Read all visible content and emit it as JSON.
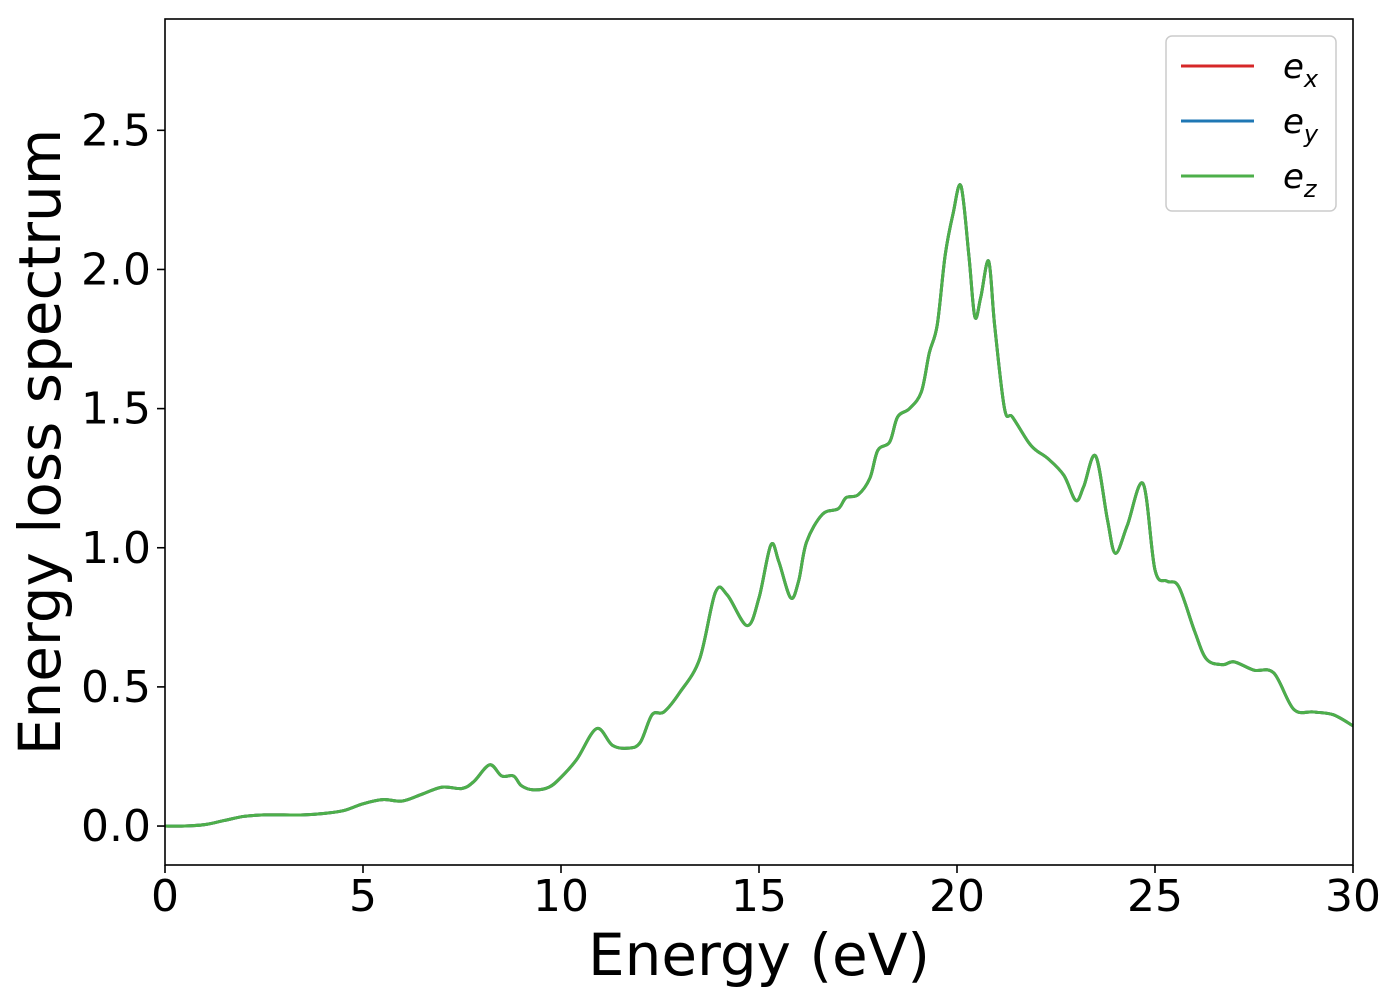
{
  "chart_data": {
    "type": "line",
    "title": "",
    "xlabel": "Energy (eV)",
    "ylabel": "Energy loss spectrum",
    "xlim": [
      0,
      30
    ],
    "ylim": [
      -0.14,
      2.9
    ],
    "xticks": [
      0,
      5,
      10,
      15,
      20,
      25,
      30
    ],
    "xtick_labels": [
      "0",
      "5",
      "10",
      "15",
      "20",
      "25",
      "30"
    ],
    "yticks": [
      0.0,
      0.5,
      1.0,
      1.5,
      2.0,
      2.5
    ],
    "ytick_labels": [
      "0.0",
      "0.5",
      "1.0",
      "1.5",
      "2.0",
      "2.5"
    ],
    "grid": false,
    "legend_position": "top-right",
    "colors": {
      "ex": "#d62728",
      "ey": "#1f77b4",
      "ez": "#4daf4a"
    },
    "series": [
      {
        "name": "e_x",
        "label_base": "e",
        "label_sub": "x",
        "color": "#d62728",
        "x": [
          0,
          0.5,
          1.0,
          1.5,
          2.0,
          2.5,
          3.0,
          3.5,
          4.0,
          4.5,
          5.0,
          5.5,
          6.0,
          6.5,
          7.0,
          7.5,
          7.8,
          8.2,
          8.5,
          8.8,
          9.0,
          9.3,
          9.7,
          10.0,
          10.4,
          10.9,
          11.3,
          11.7,
          12.0,
          12.3,
          12.6,
          13.0,
          13.5,
          13.9,
          14.2,
          14.7,
          15.0,
          15.3,
          15.5,
          15.8,
          16.0,
          16.2,
          16.6,
          17.0,
          17.2,
          17.5,
          17.8,
          18.0,
          18.3,
          18.5,
          18.8,
          19.1,
          19.3,
          19.5,
          19.7,
          19.9,
          20.1,
          20.3,
          20.45,
          20.6,
          20.8,
          20.95,
          21.2,
          21.4,
          21.8,
          22.0,
          22.3,
          22.7,
          23.0,
          23.2,
          23.5,
          23.8,
          24.0,
          24.3,
          24.7,
          25.0,
          25.3,
          25.6,
          26.0,
          26.3,
          26.7,
          27.0,
          27.5,
          28.0,
          28.5,
          29.0,
          29.5,
          30.0
        ],
        "y": [
          0.0,
          0.0,
          0.005,
          0.02,
          0.035,
          0.04,
          0.04,
          0.04,
          0.045,
          0.055,
          0.08,
          0.095,
          0.09,
          0.115,
          0.14,
          0.135,
          0.16,
          0.22,
          0.18,
          0.18,
          0.145,
          0.13,
          0.14,
          0.175,
          0.24,
          0.35,
          0.29,
          0.28,
          0.3,
          0.4,
          0.41,
          0.48,
          0.6,
          0.84,
          0.83,
          0.72,
          0.82,
          1.01,
          0.95,
          0.82,
          0.88,
          1.02,
          1.12,
          1.14,
          1.18,
          1.19,
          1.25,
          1.35,
          1.38,
          1.47,
          1.5,
          1.56,
          1.7,
          1.8,
          2.05,
          2.2,
          2.3,
          2.05,
          1.83,
          1.9,
          2.03,
          1.8,
          1.5,
          1.47,
          1.38,
          1.35,
          1.32,
          1.26,
          1.17,
          1.22,
          1.33,
          1.1,
          0.98,
          1.08,
          1.23,
          0.92,
          0.88,
          0.86,
          0.7,
          0.6,
          0.58,
          0.59,
          0.56,
          0.55,
          0.42,
          0.41,
          0.4,
          0.36
        ]
      },
      {
        "name": "e_y",
        "label_base": "e",
        "label_sub": "y",
        "color": "#1f77b4",
        "x": [
          0,
          0.5,
          1.0,
          1.5,
          2.0,
          2.5,
          3.0,
          3.5,
          4.0,
          4.5,
          5.0,
          5.5,
          6.0,
          6.5,
          7.0,
          7.5,
          7.8,
          8.2,
          8.5,
          8.8,
          9.0,
          9.3,
          9.7,
          10.0,
          10.4,
          10.9,
          11.3,
          11.7,
          12.0,
          12.3,
          12.6,
          13.0,
          13.5,
          13.9,
          14.2,
          14.7,
          15.0,
          15.3,
          15.5,
          15.8,
          16.0,
          16.2,
          16.6,
          17.0,
          17.2,
          17.5,
          17.8,
          18.0,
          18.3,
          18.5,
          18.8,
          19.1,
          19.3,
          19.5,
          19.7,
          19.9,
          20.1,
          20.3,
          20.45,
          20.6,
          20.8,
          20.95,
          21.2,
          21.4,
          21.8,
          22.0,
          22.3,
          22.7,
          23.0,
          23.2,
          23.5,
          23.8,
          24.0,
          24.3,
          24.7,
          25.0,
          25.3,
          25.6,
          26.0,
          26.3,
          26.7,
          27.0,
          27.5,
          28.0,
          28.5,
          29.0,
          29.5,
          30.0
        ],
        "y": [
          0.0,
          0.0,
          0.005,
          0.02,
          0.035,
          0.04,
          0.04,
          0.04,
          0.045,
          0.055,
          0.08,
          0.095,
          0.09,
          0.115,
          0.14,
          0.135,
          0.16,
          0.22,
          0.18,
          0.18,
          0.145,
          0.13,
          0.14,
          0.175,
          0.24,
          0.35,
          0.29,
          0.28,
          0.3,
          0.4,
          0.41,
          0.48,
          0.6,
          0.84,
          0.83,
          0.72,
          0.82,
          1.01,
          0.95,
          0.82,
          0.88,
          1.02,
          1.12,
          1.14,
          1.18,
          1.19,
          1.25,
          1.35,
          1.38,
          1.47,
          1.5,
          1.56,
          1.7,
          1.8,
          2.05,
          2.2,
          2.3,
          2.05,
          1.83,
          1.9,
          2.03,
          1.8,
          1.5,
          1.47,
          1.38,
          1.35,
          1.32,
          1.26,
          1.17,
          1.22,
          1.33,
          1.1,
          0.98,
          1.08,
          1.23,
          0.92,
          0.88,
          0.86,
          0.7,
          0.6,
          0.58,
          0.59,
          0.56,
          0.55,
          0.42,
          0.41,
          0.4,
          0.36
        ]
      },
      {
        "name": "e_z",
        "label_base": "e",
        "label_sub": "z",
        "color": "#4daf4a",
        "x": [
          0,
          0.5,
          1.0,
          1.5,
          2.0,
          2.5,
          3.0,
          3.5,
          4.0,
          4.5,
          5.0,
          5.5,
          6.0,
          6.5,
          7.0,
          7.5,
          7.8,
          8.2,
          8.5,
          8.8,
          9.0,
          9.3,
          9.7,
          10.0,
          10.4,
          10.9,
          11.3,
          11.7,
          12.0,
          12.3,
          12.6,
          13.0,
          13.5,
          13.9,
          14.2,
          14.7,
          15.0,
          15.3,
          15.5,
          15.8,
          16.0,
          16.2,
          16.6,
          17.0,
          17.2,
          17.5,
          17.8,
          18.0,
          18.3,
          18.5,
          18.8,
          19.1,
          19.3,
          19.5,
          19.7,
          19.9,
          20.1,
          20.3,
          20.45,
          20.6,
          20.8,
          20.95,
          21.2,
          21.4,
          21.8,
          22.0,
          22.3,
          22.7,
          23.0,
          23.2,
          23.5,
          23.8,
          24.0,
          24.3,
          24.7,
          25.0,
          25.3,
          25.6,
          26.0,
          26.3,
          26.7,
          27.0,
          27.5,
          28.0,
          28.5,
          29.0,
          29.5,
          30.0
        ],
        "y": [
          0.0,
          0.0,
          0.005,
          0.02,
          0.035,
          0.04,
          0.04,
          0.04,
          0.045,
          0.055,
          0.08,
          0.095,
          0.09,
          0.115,
          0.14,
          0.135,
          0.16,
          0.22,
          0.18,
          0.18,
          0.145,
          0.13,
          0.14,
          0.175,
          0.24,
          0.35,
          0.29,
          0.28,
          0.3,
          0.4,
          0.41,
          0.48,
          0.6,
          0.84,
          0.83,
          0.72,
          0.82,
          1.01,
          0.95,
          0.82,
          0.88,
          1.02,
          1.12,
          1.14,
          1.18,
          1.19,
          1.25,
          1.35,
          1.38,
          1.47,
          1.5,
          1.56,
          1.7,
          1.8,
          2.05,
          2.2,
          2.3,
          2.05,
          1.83,
          1.9,
          2.03,
          1.8,
          1.5,
          1.47,
          1.38,
          1.35,
          1.32,
          1.26,
          1.17,
          1.22,
          1.33,
          1.1,
          0.98,
          1.08,
          1.23,
          0.92,
          0.88,
          0.86,
          0.7,
          0.6,
          0.58,
          0.59,
          0.56,
          0.55,
          0.42,
          0.41,
          0.4,
          0.36
        ]
      }
    ]
  }
}
